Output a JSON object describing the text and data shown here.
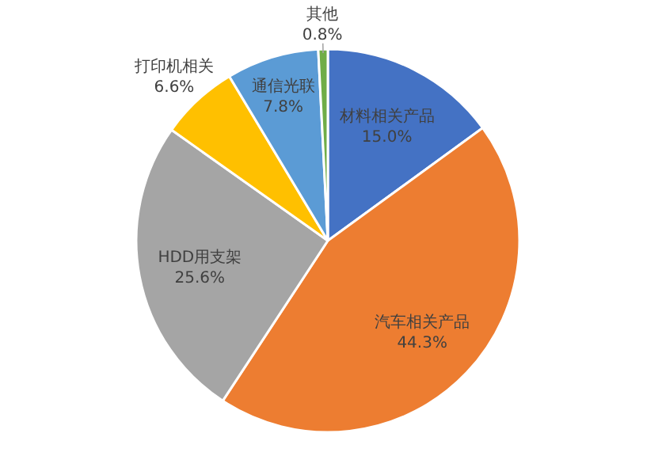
{
  "chart_data": {
    "type": "pie",
    "categories": [
      "材料相关产品",
      "汽车相关产品",
      "HDD用支架",
      "打印机相关",
      "通信光联",
      "其他"
    ],
    "values": [
      15.0,
      44.3,
      25.6,
      6.6,
      7.8,
      0.8
    ],
    "value_labels": [
      "15.0%",
      "44.3%",
      "25.6%",
      "6.6%",
      "7.8%",
      "0.8%"
    ],
    "colors": [
      "#4472c4",
      "#ed7d31",
      "#a5a5a5",
      "#ffc000",
      "#5b9bd5",
      "#70ad47"
    ]
  }
}
